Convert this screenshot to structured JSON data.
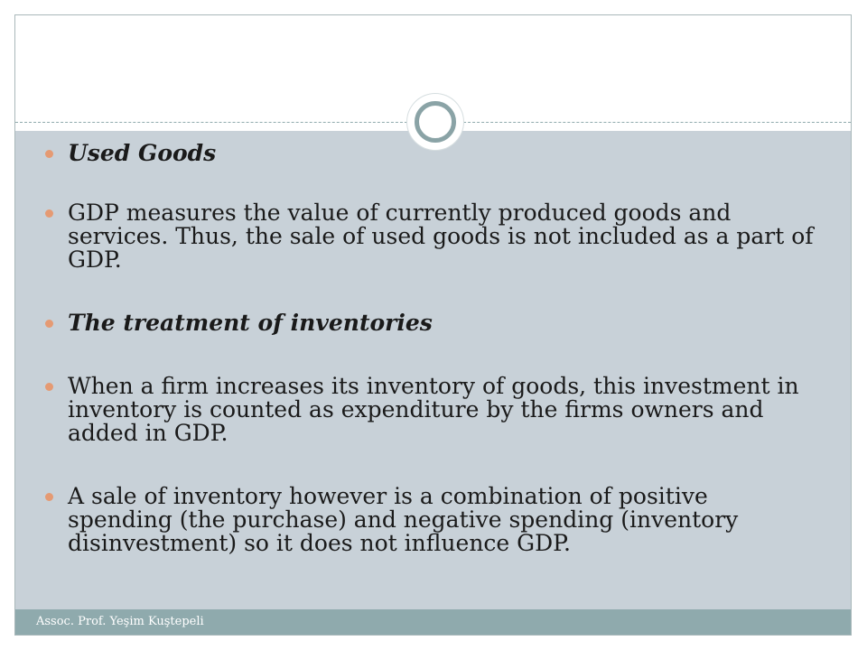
{
  "slide": {
    "bullets": [
      {
        "text": "Used Goods",
        "style": "heading"
      },
      {
        "text": "GDP measures the value of currently produced goods and services. Thus, the sale of used goods is not included as a part of GDP.",
        "style": "body"
      },
      {
        "text": "The treatment of inventories",
        "style": "heading"
      },
      {
        "text": "When a firm increases its inventory of goods, this investment in inventory is counted as expenditure by the firms owners and added in GDP.",
        "style": "body"
      },
      {
        "text": "A sale of inventory however is a combination of positive spending (the purchase) and negative spending (inventory disinvestment) so it does not influence GDP.",
        "style": "body"
      }
    ],
    "footer": "Assoc. Prof. Yeşim Kuştepeli"
  },
  "colors": {
    "content_background": "#c8d1d8",
    "footer_background": "#8faaad",
    "bullet": "#e59a73",
    "ring": "#8aa3a6"
  }
}
